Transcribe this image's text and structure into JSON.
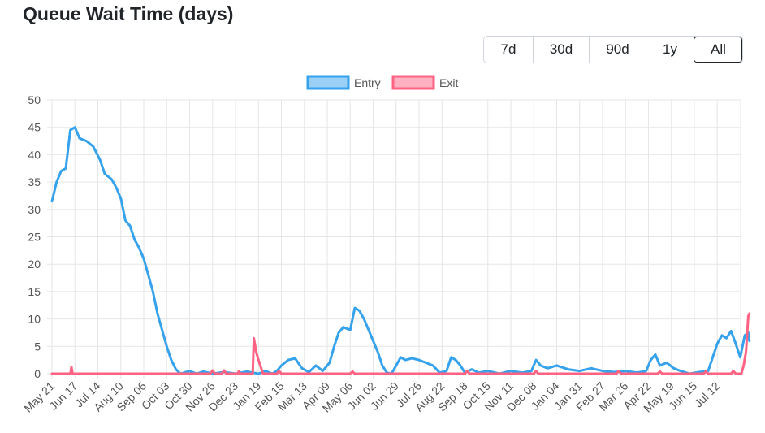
{
  "title": "Queue Wait Time (days)",
  "range_buttons": [
    {
      "label": "7d",
      "active": false
    },
    {
      "label": "30d",
      "active": false
    },
    {
      "label": "90d",
      "active": false
    },
    {
      "label": "1y",
      "active": false
    },
    {
      "label": "All",
      "active": true
    }
  ],
  "chart_data": {
    "type": "line",
    "ylim": [
      0,
      50
    ],
    "yticks": [
      0,
      5,
      10,
      15,
      20,
      25,
      30,
      35,
      40,
      45,
      50
    ],
    "grid": true,
    "legend_position": "top-center",
    "xtick_labels": [
      "May 21",
      "Jun 17",
      "Jul 14",
      "Aug 10",
      "Sep 06",
      "Oct 03",
      "Oct 30",
      "Nov 26",
      "Dec 23",
      "Jan 19",
      "Feb 15",
      "Mar 13",
      "Apr 09",
      "May 06",
      "Jun 02",
      "Jun 29",
      "Jul 26",
      "Aug 22",
      "Sep 18",
      "Oct 15",
      "Nov 11",
      "Dec 08",
      "Jan 04",
      "Jan 31",
      "Feb 27",
      "Mar 26",
      "Apr 22",
      "May 19",
      "Jun 15",
      "Jul 12"
    ],
    "x_index_max": 30.4,
    "series": [
      {
        "name": "Entry",
        "color": "#36a2eb",
        "fill": "#9ad0f5",
        "points": [
          [
            0,
            31.5
          ],
          [
            0.2,
            35
          ],
          [
            0.4,
            37
          ],
          [
            0.6,
            37.5
          ],
          [
            0.8,
            44.5
          ],
          [
            1.0,
            45
          ],
          [
            1.2,
            43
          ],
          [
            1.5,
            42.5
          ],
          [
            1.8,
            41.5
          ],
          [
            2.1,
            39
          ],
          [
            2.3,
            36.5
          ],
          [
            2.6,
            35.5
          ],
          [
            2.8,
            34
          ],
          [
            3.0,
            32
          ],
          [
            3.2,
            28
          ],
          [
            3.4,
            27
          ],
          [
            3.6,
            24.5
          ],
          [
            3.8,
            23
          ],
          [
            4.0,
            21
          ],
          [
            4.2,
            18
          ],
          [
            4.4,
            15
          ],
          [
            4.6,
            11
          ],
          [
            4.8,
            8
          ],
          [
            5.0,
            5
          ],
          [
            5.2,
            2.5
          ],
          [
            5.4,
            0.8
          ],
          [
            5.6,
            0
          ],
          [
            6.0,
            0.5
          ],
          [
            6.3,
            0
          ],
          [
            6.6,
            0.4
          ],
          [
            7.0,
            0
          ],
          [
            7.5,
            0.3
          ],
          [
            8.0,
            0
          ],
          [
            8.5,
            0.4
          ],
          [
            9.0,
            0
          ],
          [
            9.3,
            0.5
          ],
          [
            9.6,
            0
          ],
          [
            9.8,
            0.5
          ],
          [
            10.0,
            1.5
          ],
          [
            10.3,
            2.5
          ],
          [
            10.6,
            2.8
          ],
          [
            10.9,
            1
          ],
          [
            11.2,
            0.3
          ],
          [
            11.5,
            1.5
          ],
          [
            11.8,
            0.5
          ],
          [
            12.1,
            2
          ],
          [
            12.3,
            5
          ],
          [
            12.5,
            7.5
          ],
          [
            12.7,
            8.5
          ],
          [
            13.0,
            8
          ],
          [
            13.2,
            12
          ],
          [
            13.4,
            11.5
          ],
          [
            13.6,
            10
          ],
          [
            13.8,
            8
          ],
          [
            14.0,
            6
          ],
          [
            14.2,
            4
          ],
          [
            14.4,
            1.5
          ],
          [
            14.6,
            0.2
          ],
          [
            14.8,
            0
          ],
          [
            15.0,
            1.5
          ],
          [
            15.2,
            3
          ],
          [
            15.4,
            2.5
          ],
          [
            15.7,
            2.8
          ],
          [
            16.0,
            2.5
          ],
          [
            16.3,
            2
          ],
          [
            16.6,
            1.5
          ],
          [
            16.9,
            0.2
          ],
          [
            17.2,
            0.5
          ],
          [
            17.4,
            3
          ],
          [
            17.6,
            2.5
          ],
          [
            17.8,
            1.5
          ],
          [
            18.0,
            0.2
          ],
          [
            18.3,
            0.8
          ],
          [
            18.6,
            0.2
          ],
          [
            19.0,
            0.5
          ],
          [
            19.5,
            0
          ],
          [
            20.0,
            0.5
          ],
          [
            20.5,
            0.2
          ],
          [
            20.9,
            0.5
          ],
          [
            21.1,
            2.5
          ],
          [
            21.3,
            1.5
          ],
          [
            21.6,
            1
          ],
          [
            22.0,
            1.5
          ],
          [
            22.5,
            0.8
          ],
          [
            23.0,
            0.5
          ],
          [
            23.5,
            1
          ],
          [
            24.0,
            0.5
          ],
          [
            24.5,
            0.3
          ],
          [
            25.0,
            0.5
          ],
          [
            25.5,
            0.2
          ],
          [
            25.9,
            0.5
          ],
          [
            26.1,
            2.5
          ],
          [
            26.3,
            3.5
          ],
          [
            26.5,
            1.5
          ],
          [
            26.8,
            2
          ],
          [
            27.1,
            1
          ],
          [
            27.4,
            0.5
          ],
          [
            27.8,
            0
          ],
          [
            28.2,
            0.3
          ],
          [
            28.6,
            0.5
          ],
          [
            28.8,
            3
          ],
          [
            29.0,
            5.5
          ],
          [
            29.2,
            7
          ],
          [
            29.4,
            6.5
          ],
          [
            29.6,
            7.8
          ],
          [
            29.8,
            5.5
          ],
          [
            30.0,
            3
          ],
          [
            30.2,
            7
          ],
          [
            30.35,
            7.5
          ],
          [
            30.4,
            6
          ]
        ]
      },
      {
        "name": "Exit",
        "color": "#ff6384",
        "fill": "#ffb1c1",
        "points": [
          [
            0,
            0
          ],
          [
            0.8,
            0
          ],
          [
            0.85,
            1.2
          ],
          [
            0.9,
            0
          ],
          [
            5.5,
            0
          ],
          [
            6.9,
            0
          ],
          [
            7.0,
            0.6
          ],
          [
            7.1,
            0
          ],
          [
            7.4,
            0
          ],
          [
            7.5,
            0.6
          ],
          [
            7.6,
            0
          ],
          [
            8.1,
            0
          ],
          [
            8.15,
            0.5
          ],
          [
            8.2,
            0
          ],
          [
            8.5,
            0
          ],
          [
            8.75,
            0
          ],
          [
            8.8,
            6.5
          ],
          [
            8.9,
            4
          ],
          [
            9.0,
            2.5
          ],
          [
            9.2,
            0
          ],
          [
            9.8,
            0
          ],
          [
            9.9,
            0.5
          ],
          [
            10.0,
            0
          ],
          [
            13.0,
            0
          ],
          [
            13.1,
            0.4
          ],
          [
            13.2,
            0
          ],
          [
            18.0,
            0
          ],
          [
            18.1,
            0.5
          ],
          [
            18.2,
            0
          ],
          [
            20.0,
            0
          ],
          [
            21.0,
            0
          ],
          [
            21.1,
            0.5
          ],
          [
            21.2,
            0
          ],
          [
            24.0,
            0
          ],
          [
            24.6,
            0
          ],
          [
            24.7,
            0.5
          ],
          [
            24.8,
            0
          ],
          [
            26.4,
            0
          ],
          [
            26.5,
            0.4
          ],
          [
            26.6,
            0
          ],
          [
            28.4,
            0
          ],
          [
            28.5,
            0.4
          ],
          [
            28.6,
            0
          ],
          [
            29.6,
            0
          ],
          [
            29.7,
            0.5
          ],
          [
            29.8,
            0
          ],
          [
            30.05,
            0
          ],
          [
            30.15,
            1.5
          ],
          [
            30.25,
            4
          ],
          [
            30.35,
            10.5
          ],
          [
            30.4,
            11
          ]
        ]
      }
    ]
  }
}
